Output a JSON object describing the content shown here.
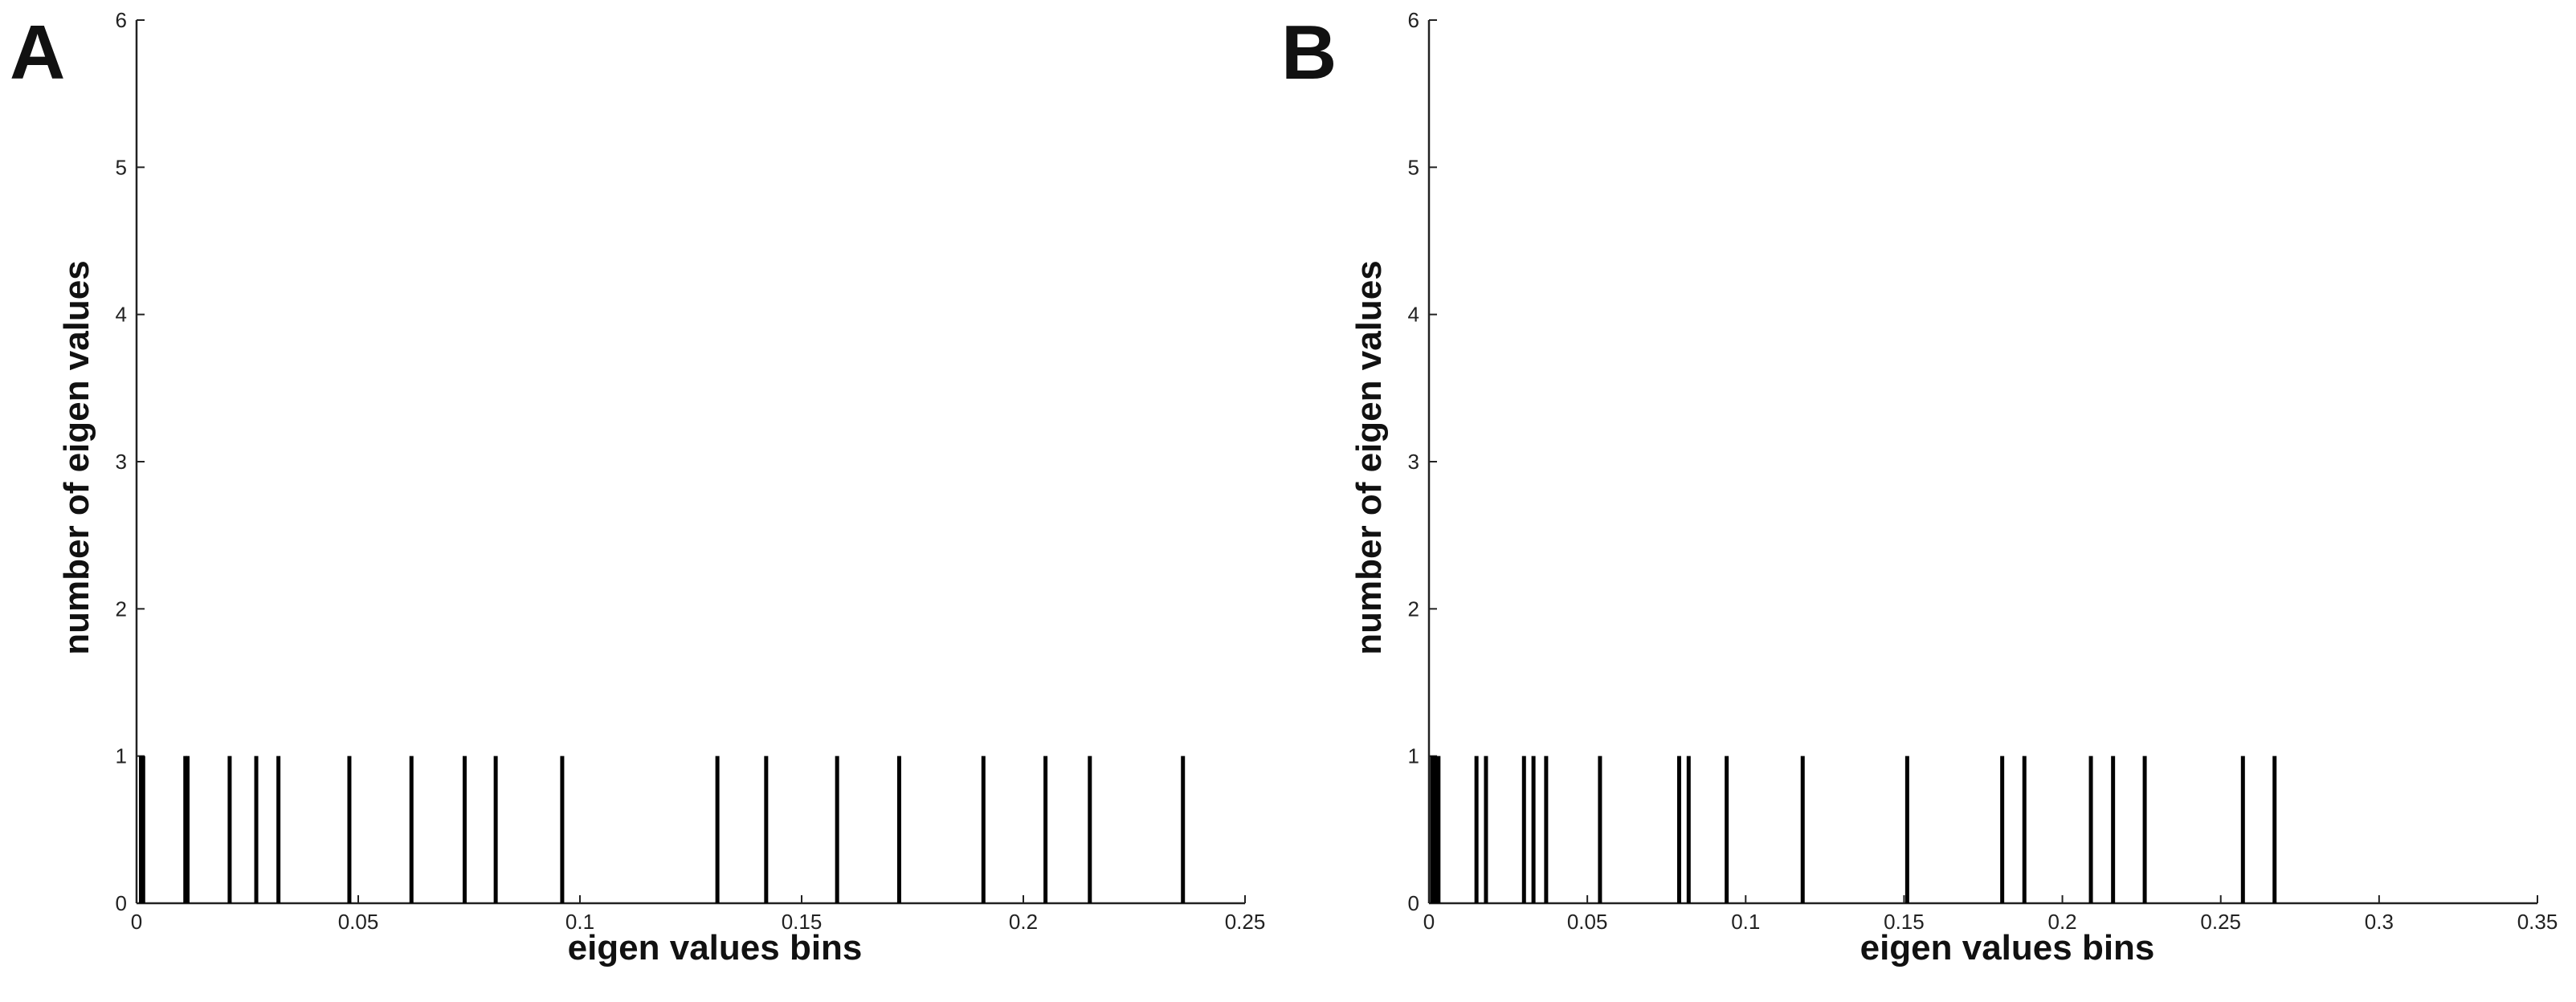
{
  "panels": [
    {
      "letter": "A"
    },
    {
      "letter": "B"
    }
  ],
  "chart_data": [
    {
      "type": "bar",
      "title": "",
      "xlabel": "eigen values bins",
      "ylabel": "number of eigen values",
      "xlim": [
        0,
        0.25
      ],
      "ylim": [
        0,
        6
      ],
      "xticks": [
        0,
        0.05,
        0.1,
        0.15,
        0.2,
        0.25
      ],
      "xtick_labels": [
        "0",
        "0.05",
        "0.1",
        "0.15",
        "0.2",
        "0.25"
      ],
      "yticks": [
        0,
        1,
        2,
        3,
        4,
        5,
        6
      ],
      "ytick_labels": [
        "0",
        "1",
        "2",
        "3",
        "4",
        "5",
        "6"
      ],
      "grid": false,
      "x": [
        0.001,
        0.0015,
        0.011,
        0.0115,
        0.021,
        0.027,
        0.032,
        0.048,
        0.062,
        0.074,
        0.081,
        0.096,
        0.131,
        0.142,
        0.158,
        0.172,
        0.191,
        0.205,
        0.215,
        0.236
      ],
      "values": [
        1,
        1,
        1,
        1,
        1,
        1,
        1,
        1,
        1,
        1,
        1,
        1,
        1,
        1,
        1,
        1,
        1,
        1,
        1,
        1
      ]
    },
    {
      "type": "bar",
      "title": "",
      "xlabel": "eigen values bins",
      "ylabel": "number of eigen values",
      "xlim": [
        0,
        0.35
      ],
      "ylim": [
        0,
        6
      ],
      "xticks": [
        0,
        0.05,
        0.1,
        0.15,
        0.2,
        0.25,
        0.3,
        0.35
      ],
      "xtick_labels": [
        "0",
        "0.05",
        "0.1",
        "0.15",
        "0.2",
        "0.25",
        "0.3",
        "0.35"
      ],
      "yticks": [
        0,
        1,
        2,
        3,
        4,
        5,
        6
      ],
      "ytick_labels": [
        "0",
        "1",
        "2",
        "3",
        "4",
        "5",
        "6"
      ],
      "grid": false,
      "x": [
        0.001,
        0.002,
        0.003,
        0.015,
        0.018,
        0.03,
        0.033,
        0.037,
        0.054,
        0.079,
        0.082,
        0.094,
        0.118,
        0.151,
        0.181,
        0.188,
        0.209,
        0.216,
        0.226,
        0.257,
        0.267
      ],
      "values": [
        1,
        1,
        1,
        1,
        1,
        1,
        1,
        1,
        1,
        1,
        1,
        1,
        1,
        1,
        1,
        1,
        1,
        1,
        1,
        1,
        1
      ]
    }
  ]
}
